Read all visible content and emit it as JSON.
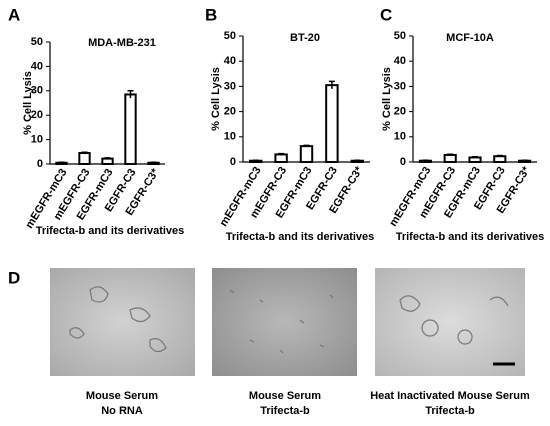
{
  "chart_data": [
    {
      "type": "bar",
      "panel": "A",
      "title": "MDA-MB-231",
      "y_label": "% Cell Lysis",
      "x_label": "Trifecta-b and its derivatives",
      "categories": [
        "mEGFR-mC3",
        "mEGFR-C3",
        "EGFR-mC3",
        "EGFR-C3",
        "EGFR-C3*"
      ],
      "values": [
        0.5,
        4.5,
        2.2,
        28.5,
        0.5
      ],
      "errors": [
        0.2,
        0.3,
        0.3,
        1.5,
        0.2
      ],
      "color": "#ffffff",
      "ylim": [
        0,
        50
      ],
      "yticks": [
        0,
        10,
        20,
        30,
        40,
        50
      ]
    },
    {
      "type": "bar",
      "panel": "B",
      "title": "BT-20",
      "y_label": "% Cell Lysis",
      "x_label": "Trifecta-b and its derivatives",
      "categories": [
        "mEGFR-mC3",
        "mEGFR-C3",
        "EGFR-mC3",
        "EGFR-C3",
        "EGFR-C3*"
      ],
      "values": [
        0.5,
        3,
        6.3,
        30.5,
        0.5
      ],
      "errors": [
        0.2,
        0.3,
        0.3,
        1.5,
        0.2
      ],
      "color": "#ffffff",
      "ylim": [
        0,
        50
      ],
      "yticks": [
        0,
        10,
        20,
        30,
        40,
        50
      ]
    },
    {
      "type": "bar",
      "panel": "C",
      "title": "MCF-10A",
      "y_label": "% Cell Lysis",
      "x_label": "Trifecta-b and its derivatives",
      "categories": [
        "mEGFR-mC3",
        "mEGFR-C3",
        "EGFR-mC3",
        "EGFR-C3",
        "EGFR-C3*"
      ],
      "values": [
        0.5,
        2.8,
        1.8,
        2.3,
        0.5
      ],
      "errors": [
        0.2,
        0.3,
        0.3,
        0.3,
        0.2
      ],
      "color": "#ffffff",
      "ylim": [
        0,
        50
      ],
      "yticks": [
        0,
        10,
        20,
        30,
        40,
        50
      ]
    }
  ],
  "panel_d": {
    "label": "D",
    "images": [
      {
        "caption": [
          "Mouse Serum",
          "No RNA"
        ]
      },
      {
        "caption": [
          "Mouse Serum",
          "Trifecta-b"
        ]
      },
      {
        "caption": [
          "Heat Inactivated Mouse Serum",
          "Trifecta-b"
        ]
      }
    ]
  }
}
